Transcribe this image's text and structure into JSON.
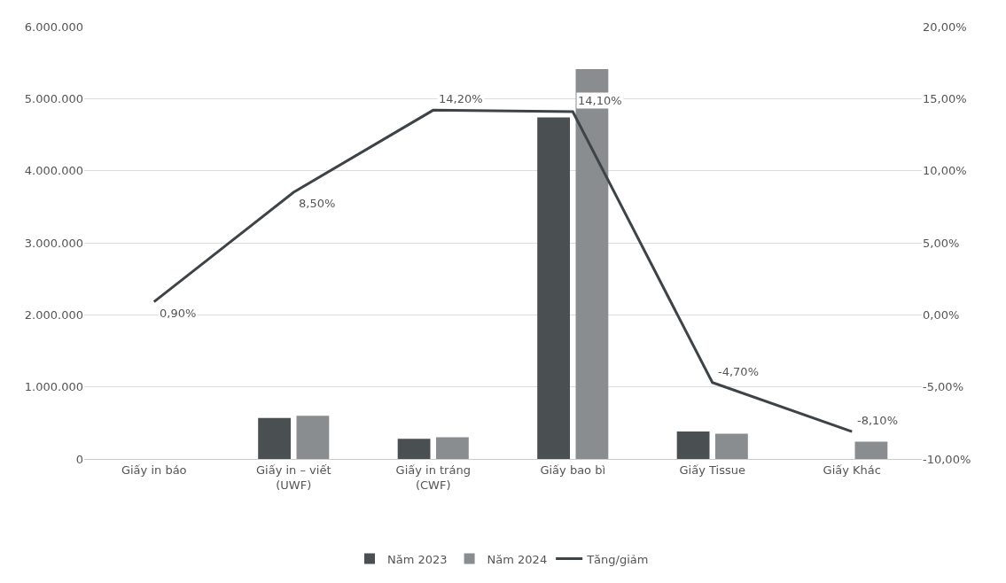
{
  "chart_data": {
    "type": "bar",
    "categories": [
      "Giấy in báo",
      "Giấy in – viết (UWF)",
      "Giấy in tráng (CWF)",
      "Giấy bao bì",
      "Giấy Tissue",
      "Giấy Khác"
    ],
    "series": [
      {
        "name": "Năm 2023",
        "color": "#4a4f52",
        "values": [
          null,
          570000,
          280000,
          4740000,
          380000,
          null
        ]
      },
      {
        "name": "Năm 2024",
        "color": "#8a8d8f",
        "values": [
          null,
          600000,
          300000,
          5410000,
          350000,
          240000
        ]
      },
      {
        "name": "Tăng/giảm",
        "type": "line",
        "axis": "y2",
        "color": "#3d4347",
        "values": [
          0.9,
          8.5,
          14.2,
          14.1,
          -4.7,
          -8.1
        ],
        "value_labels": [
          "0,90%",
          "8,50%",
          "14,20%",
          "14,10%",
          "-4,70%",
          "-8,10%"
        ]
      }
    ],
    "ylim": [
      0,
      6000000
    ],
    "yticks": [
      {
        "value": 0,
        "label": "0"
      },
      {
        "value": 1000000,
        "label": "1.000.000"
      },
      {
        "value": 2000000,
        "label": "2.000.000"
      },
      {
        "value": 3000000,
        "label": "3.000.000"
      },
      {
        "value": 4000000,
        "label": "4.000.000"
      },
      {
        "value": 5000000,
        "label": "5.000.000"
      },
      {
        "value": 6000000,
        "label": "6.000.000"
      }
    ],
    "y2lim": [
      -10,
      20
    ],
    "y2ticks": [
      {
        "value": -10,
        "label": "-10,00%"
      },
      {
        "value": -5,
        "label": "-5,00%"
      },
      {
        "value": 0,
        "label": "0,00%"
      },
      {
        "value": 5,
        "label": "5,00%"
      },
      {
        "value": 10,
        "label": "10,00%"
      },
      {
        "value": 15,
        "label": "15,00%"
      },
      {
        "value": 20,
        "label": "20,00%"
      }
    ],
    "grid": "y",
    "legend": "bottom",
    "marker": "none",
    "line_style": "solid"
  }
}
